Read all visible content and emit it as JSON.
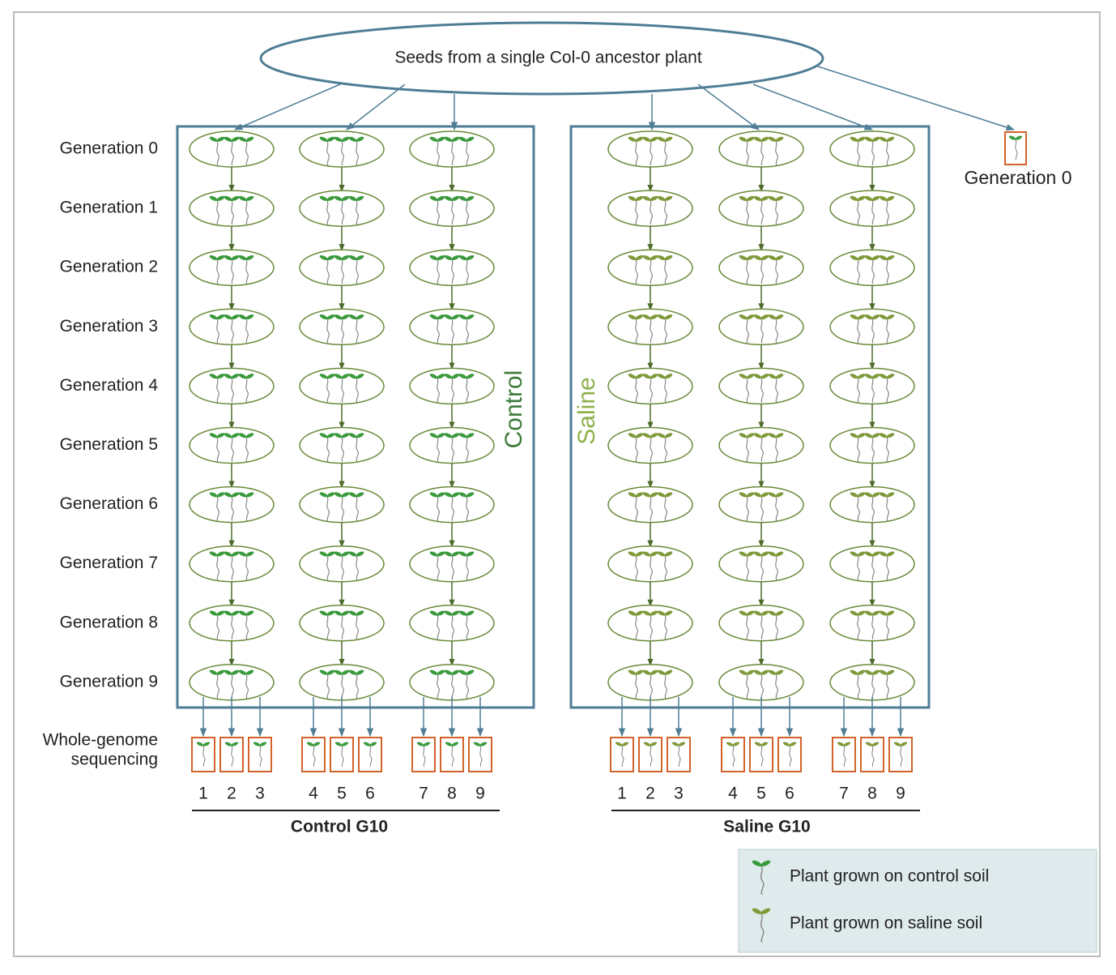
{
  "root": {
    "label": "Seeds from a single Col-0 ancestor plant"
  },
  "generations": [
    "Generation 0",
    "Generation 1",
    "Generation 2",
    "Generation 3",
    "Generation 4",
    "Generation 5",
    "Generation 6",
    "Generation 7",
    "Generation 8",
    "Generation 9"
  ],
  "panels": [
    {
      "label": "Control",
      "group_label": "Control G10",
      "samples": [
        "1",
        "2",
        "3",
        "4",
        "5",
        "6",
        "7",
        "8",
        "9"
      ]
    },
    {
      "label": "Saline",
      "group_label": "Saline G10",
      "samples": [
        "1",
        "2",
        "3",
        "4",
        "5",
        "6",
        "7",
        "8",
        "9"
      ]
    }
  ],
  "outgroup": {
    "label": "Generation 0"
  },
  "sequencing_label": [
    "Whole-genome",
    "sequencing"
  ],
  "legend": [
    {
      "label": "Plant grown on control soil"
    },
    {
      "label": "Plant grown on saline soil"
    }
  ]
}
